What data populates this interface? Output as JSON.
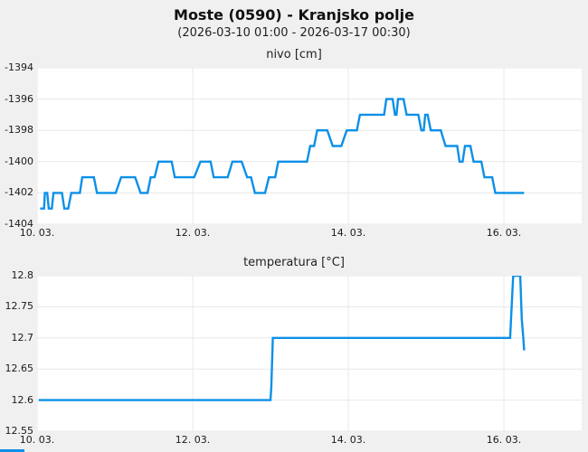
{
  "header": {
    "title": "Moste (0590) - Kranjsko polje",
    "subtitle": "(2026-03-10 01:00 - 2026-03-17 00:30)"
  },
  "colors": {
    "line": "#0c90e8",
    "grid": "#e8e8e8",
    "plot_bg": "#ffffff",
    "page_bg": "#f0f0f0",
    "accent": "#0c90e8"
  },
  "chart_data": [
    {
      "type": "line",
      "title": "nivo [cm]",
      "ylabel": "nivo [cm]",
      "xlabel": "",
      "grid": true,
      "legend": "none",
      "x_unit": "days since 2026-03-10 00:00",
      "x_domain": [
        0,
        7
      ],
      "x_ticks": [
        0,
        2,
        4,
        6
      ],
      "x_tick_labels": [
        "10. 03.",
        "12. 03.",
        "14. 03.",
        "16. 03."
      ],
      "ylim": [
        -1404,
        -1394
      ],
      "y_tick_labels": [
        "-1394",
        "-1396",
        "-1398",
        "-1400",
        "-1402",
        "-1404"
      ],
      "points": [
        [
          0.04,
          -1403
        ],
        [
          0.09,
          -1403
        ],
        [
          0.1,
          -1402
        ],
        [
          0.13,
          -1402
        ],
        [
          0.15,
          -1403
        ],
        [
          0.19,
          -1403
        ],
        [
          0.21,
          -1402
        ],
        [
          0.32,
          -1402
        ],
        [
          0.35,
          -1403
        ],
        [
          0.4,
          -1403
        ],
        [
          0.44,
          -1402
        ],
        [
          0.55,
          -1402
        ],
        [
          0.58,
          -1401
        ],
        [
          0.73,
          -1401
        ],
        [
          0.77,
          -1402
        ],
        [
          1.01,
          -1402
        ],
        [
          1.08,
          -1401
        ],
        [
          1.26,
          -1401
        ],
        [
          1.33,
          -1402
        ],
        [
          1.42,
          -1402
        ],
        [
          1.46,
          -1401
        ],
        [
          1.51,
          -1401
        ],
        [
          1.56,
          -1400
        ],
        [
          1.73,
          -1400
        ],
        [
          1.77,
          -1401
        ],
        [
          2.02,
          -1401
        ],
        [
          2.1,
          -1400
        ],
        [
          2.23,
          -1400
        ],
        [
          2.27,
          -1401
        ],
        [
          2.45,
          -1401
        ],
        [
          2.51,
          -1400
        ],
        [
          2.63,
          -1400
        ],
        [
          2.7,
          -1401
        ],
        [
          2.75,
          -1401
        ],
        [
          2.8,
          -1402
        ],
        [
          2.93,
          -1402
        ],
        [
          2.98,
          -1401
        ],
        [
          3.06,
          -1401
        ],
        [
          3.1,
          -1400
        ],
        [
          3.47,
          -1400
        ],
        [
          3.51,
          -1399
        ],
        [
          3.56,
          -1399
        ],
        [
          3.6,
          -1398
        ],
        [
          3.73,
          -1398
        ],
        [
          3.8,
          -1399
        ],
        [
          3.91,
          -1399
        ],
        [
          3.98,
          -1398
        ],
        [
          4.11,
          -1398
        ],
        [
          4.15,
          -1397
        ],
        [
          4.46,
          -1397
        ],
        [
          4.49,
          -1396
        ],
        [
          4.57,
          -1396
        ],
        [
          4.6,
          -1397
        ],
        [
          4.62,
          -1397
        ],
        [
          4.64,
          -1396
        ],
        [
          4.71,
          -1396
        ],
        [
          4.75,
          -1397
        ],
        [
          4.9,
          -1397
        ],
        [
          4.94,
          -1398
        ],
        [
          4.97,
          -1398
        ],
        [
          4.99,
          -1397
        ],
        [
          5.02,
          -1397
        ],
        [
          5.06,
          -1398
        ],
        [
          5.19,
          -1398
        ],
        [
          5.25,
          -1399
        ],
        [
          5.4,
          -1399
        ],
        [
          5.43,
          -1400
        ],
        [
          5.47,
          -1400
        ],
        [
          5.5,
          -1399
        ],
        [
          5.57,
          -1399
        ],
        [
          5.61,
          -1400
        ],
        [
          5.71,
          -1400
        ],
        [
          5.75,
          -1401
        ],
        [
          5.85,
          -1401
        ],
        [
          5.89,
          -1402
        ],
        [
          6.26,
          -1402
        ]
      ]
    },
    {
      "type": "line",
      "title": "temperatura [°C]",
      "ylabel": "temperatura [°C]",
      "xlabel": "",
      "grid": true,
      "legend": "none",
      "x_unit": "days since 2026-03-10 00:00",
      "x_domain": [
        0,
        7
      ],
      "x_ticks": [
        0,
        2,
        4,
        6
      ],
      "x_tick_labels": [
        "10. 03.",
        "12. 03.",
        "14. 03.",
        "16. 03."
      ],
      "ylim": [
        12.55,
        12.8
      ],
      "y_tick_labels": [
        "12.8",
        "12.75",
        "12.7",
        "12.65",
        "12.6",
        "12.55"
      ],
      "points": [
        [
          0.02,
          12.6
        ],
        [
          3.0,
          12.6
        ],
        [
          3.01,
          12.62
        ],
        [
          3.03,
          12.7
        ],
        [
          6.08,
          12.7
        ],
        [
          6.1,
          12.75
        ],
        [
          6.12,
          12.8
        ],
        [
          6.21,
          12.8
        ],
        [
          6.23,
          12.73
        ],
        [
          6.25,
          12.7
        ],
        [
          6.26,
          12.68
        ]
      ]
    }
  ]
}
